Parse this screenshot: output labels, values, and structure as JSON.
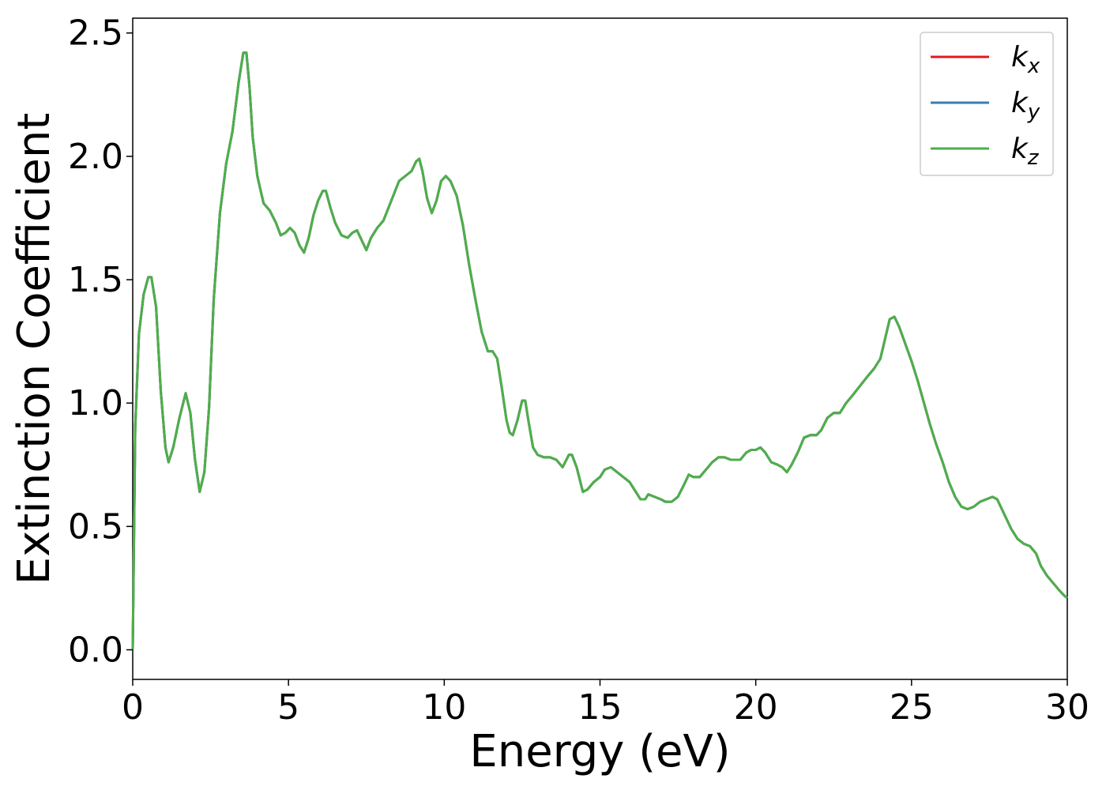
{
  "chart_data": {
    "type": "line",
    "title": "",
    "xlabel": "Energy (eV)",
    "ylabel": "Extinction Coefficient",
    "xlim": [
      0,
      30
    ],
    "ylim": [
      -0.12,
      2.56
    ],
    "xticks": [
      0,
      5,
      10,
      15,
      20,
      25,
      30
    ],
    "xtick_labels": [
      "0",
      "5",
      "10",
      "15",
      "20",
      "25",
      "30"
    ],
    "yticks": [
      0.0,
      0.5,
      1.0,
      1.5,
      2.0,
      2.5
    ],
    "ytick_labels": [
      "0.0",
      "0.5",
      "1.0",
      "1.5",
      "2.0",
      "2.5"
    ],
    "grid": false,
    "legend_position": "top-right",
    "series": [
      {
        "name": "k",
        "subscript": "x",
        "color": "#e41a1c",
        "ref": "shared"
      },
      {
        "name": "k",
        "subscript": "y",
        "color": "#377eb8",
        "ref": "shared"
      },
      {
        "name": "k",
        "subscript": "z",
        "color": "#4daf4a",
        "ref": "shared"
      }
    ],
    "shared_values": {
      "x": [
        0.0,
        0.08,
        0.2,
        0.35,
        0.5,
        0.6,
        0.75,
        0.9,
        1.05,
        1.15,
        1.3,
        1.5,
        1.7,
        1.85,
        2.0,
        2.15,
        2.3,
        2.45,
        2.6,
        2.8,
        3.0,
        3.2,
        3.4,
        3.55,
        3.65,
        3.75,
        3.85,
        4.0,
        4.2,
        4.4,
        4.6,
        4.75,
        4.9,
        5.05,
        5.2,
        5.35,
        5.5,
        5.65,
        5.8,
        5.95,
        6.1,
        6.2,
        6.35,
        6.5,
        6.7,
        6.9,
        7.05,
        7.2,
        7.35,
        7.5,
        7.65,
        7.85,
        8.05,
        8.3,
        8.55,
        8.75,
        8.95,
        9.1,
        9.2,
        9.3,
        9.45,
        9.6,
        9.75,
        9.9,
        10.05,
        10.2,
        10.4,
        10.6,
        10.8,
        11.0,
        11.2,
        11.4,
        11.55,
        11.7,
        11.85,
        12.0,
        12.1,
        12.2,
        12.35,
        12.5,
        12.6,
        12.7,
        12.85,
        13.0,
        13.2,
        13.4,
        13.6,
        13.8,
        14.0,
        14.1,
        14.25,
        14.45,
        14.6,
        14.8,
        15.0,
        15.15,
        15.35,
        15.55,
        15.75,
        15.95,
        16.15,
        16.3,
        16.45,
        16.55,
        16.75,
        16.95,
        17.1,
        17.3,
        17.5,
        17.7,
        17.85,
        18.0,
        18.2,
        18.4,
        18.6,
        18.8,
        19.0,
        19.2,
        19.35,
        19.5,
        19.7,
        19.85,
        20.0,
        20.15,
        20.3,
        20.5,
        20.7,
        20.85,
        21.0,
        21.15,
        21.35,
        21.55,
        21.75,
        21.95,
        22.1,
        22.3,
        22.5,
        22.7,
        22.9,
        23.1,
        23.35,
        23.6,
        23.8,
        24.0,
        24.15,
        24.3,
        24.45,
        24.6,
        24.8,
        25.0,
        25.2,
        25.4,
        25.6,
        25.8,
        26.0,
        26.2,
        26.4,
        26.6,
        26.8,
        27.0,
        27.2,
        27.4,
        27.6,
        27.75,
        27.9,
        28.05,
        28.2,
        28.4,
        28.6,
        28.8,
        29.0,
        29.15,
        29.35,
        29.55,
        29.75,
        29.9,
        30.0
      ],
      "y": [
        0.0,
        0.9,
        1.28,
        1.44,
        1.51,
        1.51,
        1.39,
        1.05,
        0.82,
        0.76,
        0.82,
        0.94,
        1.04,
        0.96,
        0.77,
        0.64,
        0.72,
        0.98,
        1.42,
        1.77,
        1.97,
        2.1,
        2.3,
        2.42,
        2.42,
        2.28,
        2.08,
        1.92,
        1.81,
        1.78,
        1.73,
        1.68,
        1.69,
        1.71,
        1.69,
        1.64,
        1.61,
        1.67,
        1.76,
        1.82,
        1.86,
        1.86,
        1.79,
        1.73,
        1.68,
        1.67,
        1.69,
        1.7,
        1.66,
        1.62,
        1.67,
        1.71,
        1.74,
        1.82,
        1.9,
        1.92,
        1.94,
        1.98,
        1.99,
        1.94,
        1.83,
        1.77,
        1.82,
        1.9,
        1.92,
        1.9,
        1.84,
        1.72,
        1.56,
        1.42,
        1.29,
        1.21,
        1.21,
        1.18,
        1.06,
        0.93,
        0.88,
        0.87,
        0.93,
        1.01,
        1.01,
        0.93,
        0.82,
        0.79,
        0.78,
        0.78,
        0.77,
        0.74,
        0.79,
        0.79,
        0.74,
        0.64,
        0.65,
        0.68,
        0.7,
        0.73,
        0.74,
        0.72,
        0.7,
        0.68,
        0.64,
        0.61,
        0.61,
        0.63,
        0.62,
        0.61,
        0.6,
        0.6,
        0.62,
        0.67,
        0.71,
        0.7,
        0.7,
        0.73,
        0.76,
        0.78,
        0.78,
        0.77,
        0.77,
        0.77,
        0.8,
        0.81,
        0.81,
        0.82,
        0.8,
        0.76,
        0.75,
        0.74,
        0.72,
        0.75,
        0.8,
        0.86,
        0.87,
        0.87,
        0.89,
        0.94,
        0.96,
        0.96,
        1.0,
        1.03,
        1.07,
        1.11,
        1.14,
        1.18,
        1.26,
        1.34,
        1.35,
        1.31,
        1.24,
        1.17,
        1.09,
        1.0,
        0.91,
        0.83,
        0.76,
        0.68,
        0.62,
        0.58,
        0.57,
        0.58,
        0.6,
        0.61,
        0.62,
        0.61,
        0.57,
        0.53,
        0.49,
        0.45,
        0.43,
        0.42,
        0.39,
        0.34,
        0.3,
        0.27,
        0.24,
        0.22,
        0.21
      ]
    }
  }
}
